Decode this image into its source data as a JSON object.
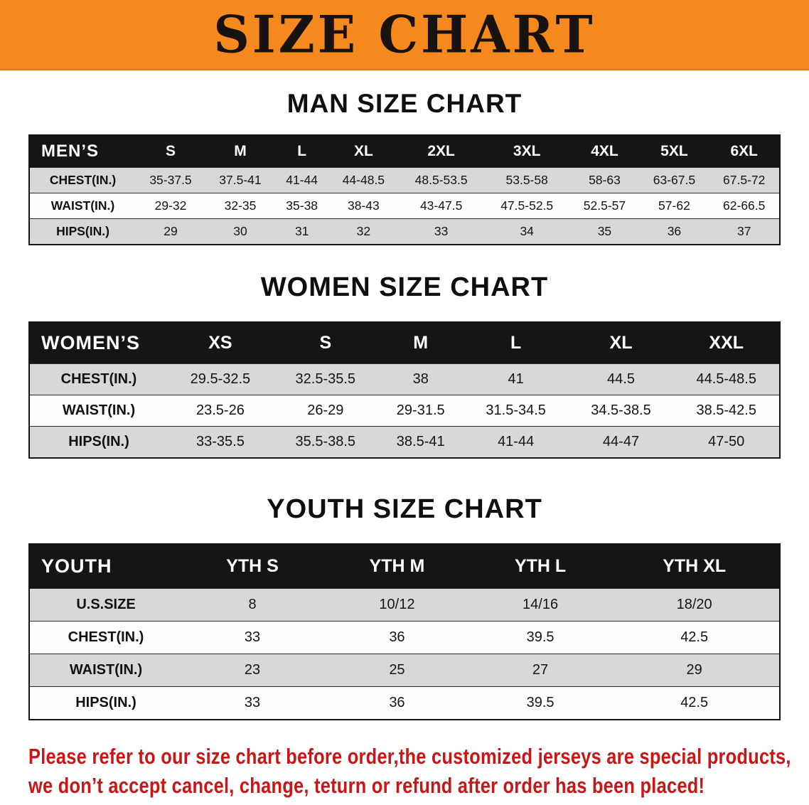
{
  "banner": {
    "title": "SIZE CHART",
    "bg_color": "#f6891d",
    "text_color": "#181310"
  },
  "sections": [
    {
      "heading": "MAN SIZE CHART",
      "table": {
        "header": [
          "MEN’S",
          "S",
          "M",
          "L",
          "XL",
          "2XL",
          "3XL",
          "4XL",
          "5XL",
          "6XL"
        ],
        "rows": [
          [
            "CHEST(IN.)",
            "35-37.5",
            "37.5-41",
            "41-44",
            "44-48.5",
            "48.5-53.5",
            "53.5-58",
            "58-63",
            "63-67.5",
            "67.5-72"
          ],
          [
            "WAIST(IN.)",
            "29-32",
            "32-35",
            "35-38",
            "38-43",
            "43-47.5",
            "47.5-52.5",
            "52.5-57",
            "57-62",
            "62-66.5"
          ],
          [
            "HIPS(IN.)",
            "29",
            "30",
            "31",
            "32",
            "33",
            "34",
            "35",
            "36",
            "37"
          ]
        ]
      }
    },
    {
      "heading": "WOMEN SIZE CHART",
      "table": {
        "header": [
          "WOMEN’S",
          "XS",
          "S",
          "M",
          "L",
          "XL",
          "XXL"
        ],
        "rows": [
          [
            "CHEST(IN.)",
            "29.5-32.5",
            "32.5-35.5",
            "38",
            "41",
            "44.5",
            "44.5-48.5"
          ],
          [
            "WAIST(IN.)",
            "23.5-26",
            "26-29",
            "29-31.5",
            "31.5-34.5",
            "34.5-38.5",
            "38.5-42.5"
          ],
          [
            "HIPS(IN.)",
            "33-35.5",
            "35.5-38.5",
            "38.5-41",
            "41-44",
            "44-47",
            "47-50"
          ]
        ]
      }
    },
    {
      "heading": "YOUTH SIZE CHART",
      "table": {
        "header": [
          "YOUTH",
          "YTH S",
          "YTH M",
          "YTH L",
          "YTH XL"
        ],
        "rows": [
          [
            "U.S.SIZE",
            "8",
            "10/12",
            "14/16",
            "18/20"
          ],
          [
            "CHEST(IN.)",
            "33",
            "36",
            "39.5",
            "42.5"
          ],
          [
            "WAIST(IN.)",
            "23",
            "25",
            "27",
            "29"
          ],
          [
            "HIPS(IN.)",
            "33",
            "36",
            "39.5",
            "42.5"
          ]
        ]
      }
    }
  ],
  "disclaimer": {
    "color": "#c91616",
    "lines": [
      "Please refer to our size chart before order,the customized jerseys are special products,",
      "we don’t accept cancel, change, teturn or refund after order has been placed!"
    ]
  }
}
